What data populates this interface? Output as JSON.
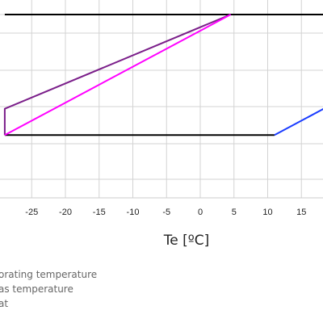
{
  "chart_data": {
    "type": "line",
    "xlabel": "Te [ºC]",
    "xlim": [
      -30,
      18.5
    ],
    "ylim": [
      0,
      100
    ],
    "x_ticks": [
      -25,
      -20,
      -15,
      -10,
      -5,
      0,
      5,
      10,
      15
    ],
    "grid": true,
    "series": [
      {
        "color": "#000000",
        "points": [
          [
            -29,
            100
          ],
          [
            4.5,
            100
          ],
          [
            18.5,
            100
          ]
        ]
      },
      {
        "color": "#000000",
        "points": [
          [
            -29,
            17.5
          ],
          [
            11,
            17.5
          ]
        ]
      },
      {
        "color": "#7b1f8a",
        "points": [
          [
            -29,
            17.5
          ],
          [
            -29,
            35.5
          ],
          [
            4.5,
            100
          ]
        ]
      },
      {
        "color": "#ff00ff",
        "points": [
          [
            -29,
            17.5
          ],
          [
            4.5,
            100
          ]
        ]
      },
      {
        "color": "#1a3cff",
        "points": [
          [
            11,
            17.5
          ],
          [
            18.5,
            36
          ]
        ]
      }
    ]
  },
  "legend": {
    "items": [
      {
        "label": "orating temperature"
      },
      {
        "label": "as temperature"
      },
      {
        "label": "at"
      }
    ]
  }
}
